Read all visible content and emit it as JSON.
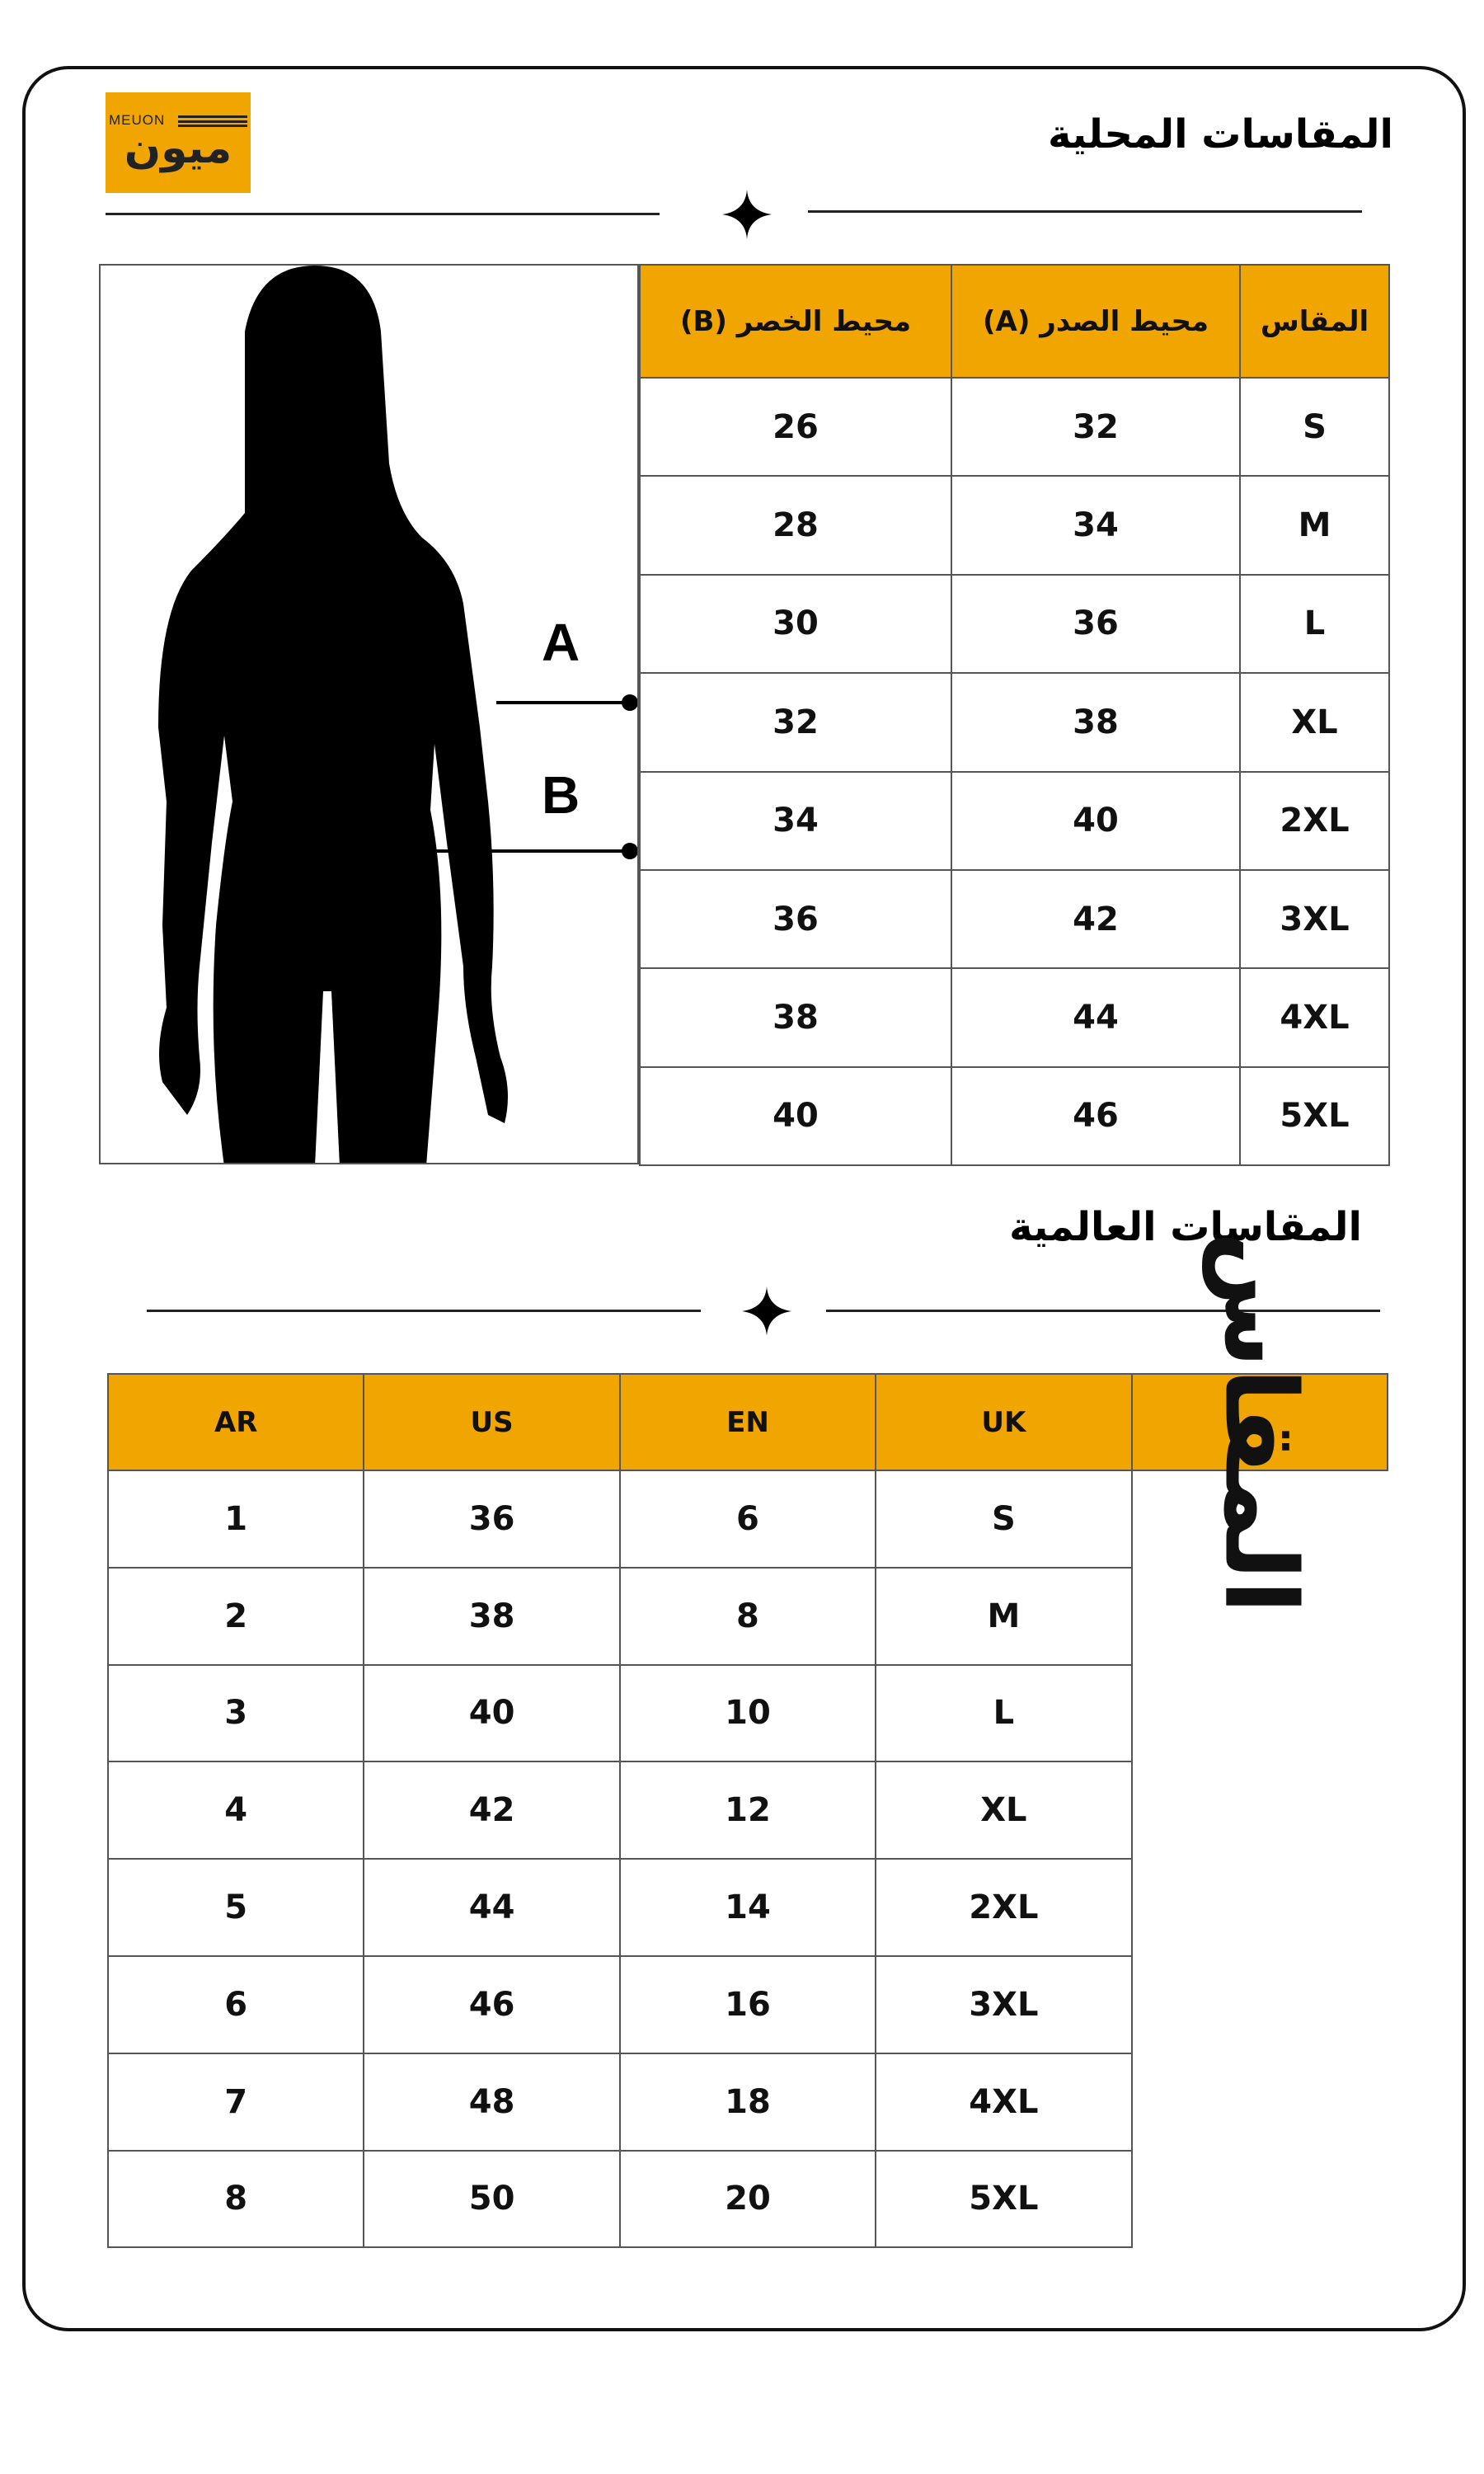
{
  "brand": {
    "logo_en": "MEUON",
    "logo_ar": "ميون",
    "color": "#f0a500"
  },
  "local": {
    "title": "المقاسات المحلية",
    "headers": [
      "محيط الخصر (B)",
      "محيط الصدر (A)",
      "المقاس"
    ],
    "rows": [
      [
        "26",
        "32",
        "S"
      ],
      [
        "28",
        "34",
        "M"
      ],
      [
        "30",
        "36",
        "L"
      ],
      [
        "32",
        "38",
        "XL"
      ],
      [
        "34",
        "40",
        "2XL"
      ],
      [
        "36",
        "42",
        "3XL"
      ],
      [
        "38",
        "44",
        "4XL"
      ],
      [
        "40",
        "46",
        "5XL"
      ]
    ],
    "markers": [
      "A",
      "B"
    ]
  },
  "global": {
    "title": "المقاسات العالمية",
    "headers": [
      "AR",
      "US",
      "EN",
      "UK"
    ],
    "side_label": "المقاس",
    "rows": [
      [
        "1",
        "36",
        "6",
        "S"
      ],
      [
        "2",
        "38",
        "8",
        "M"
      ],
      [
        "3",
        "40",
        "10",
        "L"
      ],
      [
        "4",
        "42",
        "12",
        "XL"
      ],
      [
        "5",
        "44",
        "14",
        "2XL"
      ],
      [
        "6",
        "46",
        "16",
        "3XL"
      ],
      [
        "7",
        "48",
        "18",
        "4XL"
      ],
      [
        "8",
        "50",
        "20",
        "5XL"
      ]
    ]
  }
}
